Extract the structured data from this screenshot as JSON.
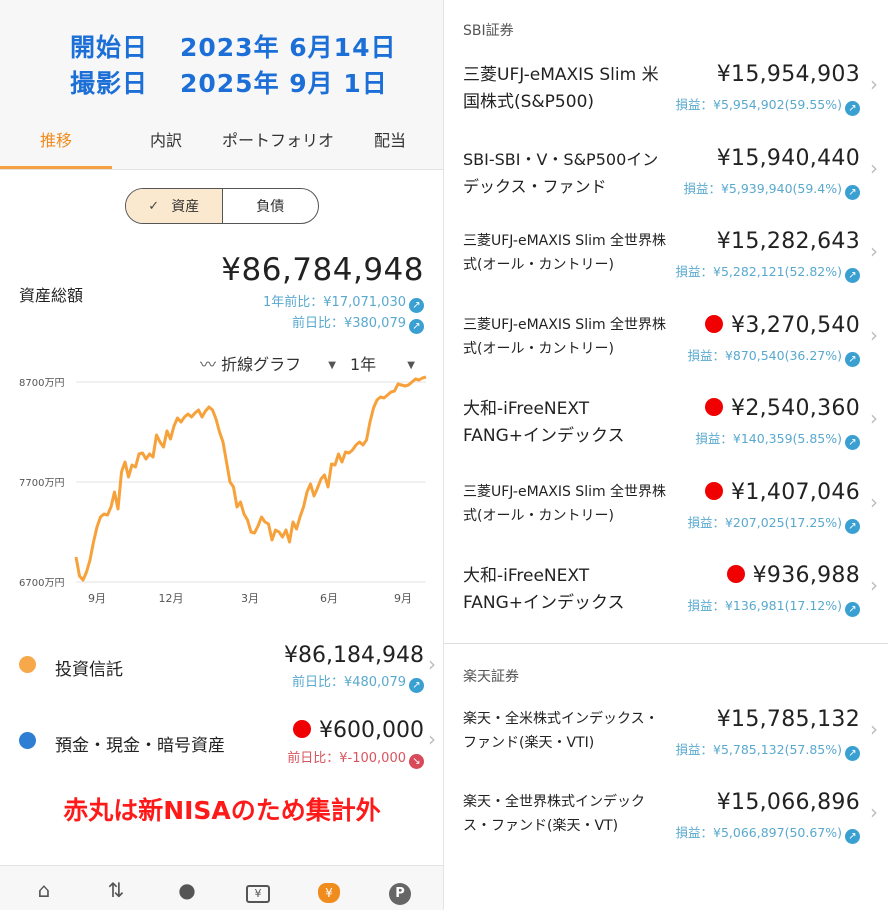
{
  "header": {
    "start_label": "開始日",
    "start_value": "2023年 6月14日",
    "shot_label": "撮影日",
    "shot_value": "2025年 9月 1日"
  },
  "tabs": [
    {
      "label": "推移",
      "active": true
    },
    {
      "label": "内訳",
      "active": false
    },
    {
      "label": "ポートフォリオ",
      "active": false
    },
    {
      "label": "配当",
      "active": false
    }
  ],
  "segment": {
    "assets": "資産",
    "liabilities": "負債",
    "selected": "資産"
  },
  "summary": {
    "label": "資産総額",
    "value": "¥86,784,948",
    "year_compare": "1年前比：¥17,071,030",
    "day_compare": "前日比：¥380,079"
  },
  "controls": {
    "chart_type": "折線グラフ",
    "period": "1年"
  },
  "chart_data": {
    "type": "line",
    "y_ticks": [
      "8700万円",
      "7700万円",
      "6700万円"
    ],
    "x_ticks": [
      "9月",
      "12月",
      "3月",
      "6月",
      "9月"
    ],
    "ylim": [
      6700,
      8700
    ],
    "y_unit": "万円",
    "series": [
      {
        "color": "#f7a13b",
        "x": [
          0,
          1,
          2,
          3,
          4,
          5,
          6,
          7,
          8,
          9,
          10,
          11,
          12,
          13,
          14,
          15,
          16,
          17,
          18,
          19,
          20,
          21,
          22,
          23,
          24,
          25,
          26,
          27,
          28,
          29,
          30,
          31,
          32,
          33,
          34,
          35,
          36,
          37,
          38,
          39,
          40,
          41,
          42,
          43,
          44,
          45,
          46,
          47,
          48,
          49,
          50,
          51,
          52,
          53,
          54,
          55,
          56,
          57,
          58,
          59,
          60,
          61,
          62,
          63,
          64,
          65,
          66,
          67,
          68,
          69,
          70,
          71,
          72,
          73,
          74,
          75,
          76,
          77,
          78,
          79,
          80,
          81,
          82,
          83,
          84,
          85,
          86,
          87,
          88,
          89,
          90,
          91,
          92,
          93,
          94,
          95,
          96,
          97,
          98,
          99,
          100
        ],
        "y": [
          6950,
          6760,
          6720,
          6800,
          6920,
          7100,
          7250,
          7350,
          7380,
          7370,
          7450,
          7600,
          7430,
          7800,
          7900,
          7750,
          7870,
          7850,
          7980,
          7990,
          7930,
          7980,
          7950,
          8170,
          8100,
          8050,
          8210,
          8130,
          8260,
          8340,
          8300,
          8350,
          8380,
          8350,
          8390,
          8420,
          8350,
          8410,
          8450,
          8420,
          8330,
          8200,
          8100,
          7900,
          7700,
          7650,
          7450,
          7500,
          7380,
          7320,
          7200,
          7190,
          7260,
          7350,
          7300,
          7280,
          7120,
          7220,
          7200,
          7150,
          7220,
          7100,
          7300,
          7230,
          7350,
          7450,
          7600,
          7680,
          7560,
          7640,
          7730,
          7770,
          7650,
          7880,
          7870,
          7980,
          7900,
          8000,
          7990,
          8020,
          8070,
          8100,
          8070,
          8120,
          8300,
          8440,
          8520,
          8550,
          8540,
          8570,
          8600,
          8610,
          8680,
          8670,
          8660,
          8670,
          8700,
          8730,
          8720,
          8740,
          8750
        ]
      }
    ]
  },
  "categories": [
    {
      "label": "投資信託",
      "value": "¥86,184,948",
      "compare": "前日比：¥480,079",
      "dot_color": "#f7a84a",
      "red_dot": false,
      "trend": "up"
    },
    {
      "label": "預金・現金・暗号資産",
      "value": "¥600,000",
      "compare": "前日比：¥-100,000",
      "dot_color": "#2e7fd4",
      "red_dot": true,
      "trend": "down"
    }
  ],
  "note": "赤丸は新NISAのため集計外",
  "bottom_nav": [
    {
      "icon": "home-icon",
      "glyph": "⌂",
      "label": "ホーム"
    },
    {
      "icon": "transfer-icon",
      "glyph": "⇅",
      "label": "入出金"
    },
    {
      "icon": "piggy-bank-icon",
      "glyph": "●",
      "label": "家計簿"
    },
    {
      "icon": "wallet-icon",
      "glyph": "¥",
      "label": "口座"
    },
    {
      "icon": "money-bag-icon",
      "glyph": "¥",
      "label": "資産"
    },
    {
      "icon": "point-icon",
      "glyph": "P",
      "label": "ポイント"
    }
  ],
  "sections": [
    {
      "title": "SBI証券",
      "funds": [
        {
          "name": "三菱UFJ-eMAXIS Slim 米国株式(S&P500)",
          "value": "¥15,954,903",
          "pl": "損益：¥5,954,902(59.55%)",
          "red_dot": false,
          "name_size": "large"
        },
        {
          "name": "SBI-SBI・V・S&P500インデックス・ファンド",
          "value": "¥15,940,440",
          "pl": "損益：¥5,939,940(59.4%)",
          "red_dot": false,
          "name_size": "medium"
        },
        {
          "name": "三菱UFJ-eMAXIS Slim 全世界株式(オール・カントリー)",
          "value": "¥15,282,643",
          "pl": "損益：¥5,282,121(52.82%)",
          "red_dot": false,
          "name_size": "small"
        },
        {
          "name": "三菱UFJ-eMAXIS Slim 全世界株式(オール・カントリー)",
          "value": "¥3,270,540",
          "pl": "損益：¥870,540(36.27%)",
          "red_dot": true,
          "name_size": "small"
        },
        {
          "name": "大和-iFreeNEXT FANG+インデックス",
          "value": "¥2,540,360",
          "pl": "損益：¥140,359(5.85%)",
          "red_dot": true,
          "name_size": "large"
        },
        {
          "name": "三菱UFJ-eMAXIS Slim 全世界株式(オール・カントリー)",
          "value": "¥1,407,046",
          "pl": "損益：¥207,025(17.25%)",
          "red_dot": true,
          "name_size": "small"
        },
        {
          "name": "大和-iFreeNEXT FANG+インデックス",
          "value": "¥936,988",
          "pl": "損益：¥136,981(17.12%)",
          "red_dot": true,
          "name_size": "large"
        }
      ]
    },
    {
      "title": "楽天証券",
      "funds": [
        {
          "name": "楽天・全米株式インデックス・ファンド(楽天・VTI)",
          "value": "¥15,785,132",
          "pl": "損益：¥5,785,132(57.85%)",
          "red_dot": false,
          "name_size": "small"
        },
        {
          "name": "楽天・全世界株式インデックス・ファンド(楽天・VT)",
          "value": "¥15,066,896",
          "pl": "損益：¥5,066,897(50.67%)",
          "red_dot": false,
          "name_size": "small"
        }
      ]
    }
  ]
}
